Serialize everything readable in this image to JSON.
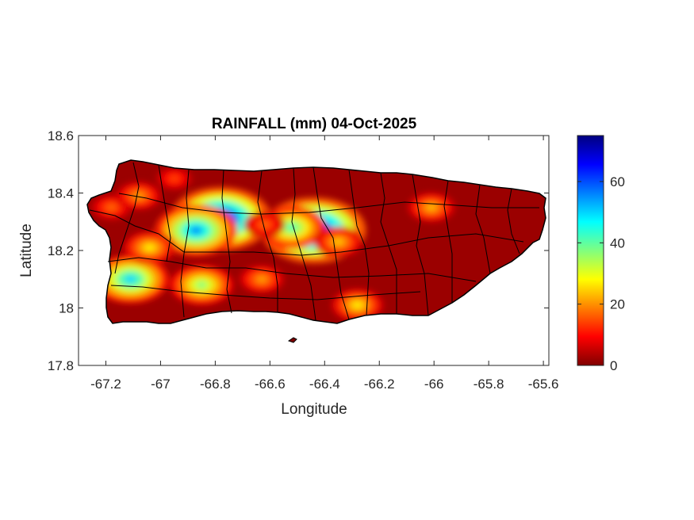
{
  "chart_data": {
    "type": "heatmap",
    "title": "RAINFALL (mm) 04-Oct-2025",
    "xlabel": "Longitude",
    "ylabel": "Latitude",
    "xlim": [
      -67.3,
      -65.58
    ],
    "ylim": [
      17.8,
      18.6
    ],
    "xticks": [
      -67.2,
      -67,
      -66.8,
      -66.6,
      -66.4,
      -66.2,
      -66,
      -65.8,
      -65.6
    ],
    "yticks": [
      17.8,
      18,
      18.2,
      18.4,
      18.6
    ],
    "colorbar": {
      "min": 0,
      "max": 75,
      "ticks": [
        0,
        20,
        40,
        60
      ],
      "colormap": "jet"
    },
    "background_value": 2,
    "rain_cells": [
      {
        "lon": -66.78,
        "lat": 18.31,
        "value": 72
      },
      {
        "lon": -66.87,
        "lat": 18.27,
        "value": 55
      },
      {
        "lon": -66.44,
        "lat": 18.27,
        "value": 75
      },
      {
        "lon": -66.52,
        "lat": 18.28,
        "value": 42
      },
      {
        "lon": -66.35,
        "lat": 18.23,
        "value": 25
      },
      {
        "lon": -66.62,
        "lat": 18.29,
        "value": 18
      },
      {
        "lon": -67.11,
        "lat": 18.1,
        "value": 50
      },
      {
        "lon": -67.04,
        "lat": 18.21,
        "value": 28
      },
      {
        "lon": -66.85,
        "lat": 18.08,
        "value": 38
      },
      {
        "lon": -66.63,
        "lat": 18.1,
        "value": 22
      },
      {
        "lon": -66.28,
        "lat": 18.01,
        "value": 28
      },
      {
        "lon": -66.01,
        "lat": 18.35,
        "value": 24
      },
      {
        "lon": -67.18,
        "lat": 18.35,
        "value": 18
      },
      {
        "lon": -67.08,
        "lat": 18.39,
        "value": 22
      },
      {
        "lon": -66.95,
        "lat": 18.45,
        "value": 15
      }
    ],
    "grid": false
  }
}
